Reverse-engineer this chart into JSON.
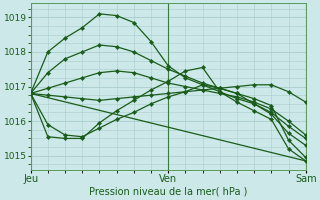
{
  "title": "",
  "xlabel": "Pression niveau de la mer( hPa )",
  "ylabel": "",
  "background_color": "#cce8e8",
  "grid_color": "#aacccc",
  "line_color": "#1a5c1a",
  "ylim": [
    1014.6,
    1019.4
  ],
  "yticks": [
    1015,
    1016,
    1017,
    1018,
    1019
  ],
  "xtick_labels": [
    "Jeu",
    "Ven",
    "Sam"
  ],
  "xtick_positions": [
    0,
    48,
    96
  ],
  "vline_positions": [
    0,
    48,
    96
  ],
  "lines": [
    {
      "x": [
        0,
        6,
        12,
        18,
        24,
        30,
        36,
        42,
        48,
        54,
        60,
        66,
        72,
        78,
        84,
        90,
        96
      ],
      "y": [
        1016.8,
        1018.0,
        1018.4,
        1018.7,
        1019.1,
        1019.05,
        1018.85,
        1018.3,
        1017.6,
        1017.25,
        1017.05,
        1016.85,
        1016.65,
        1016.5,
        1016.25,
        1015.85,
        1015.5
      ]
    },
    {
      "x": [
        0,
        6,
        12,
        18,
        24,
        30,
        36,
        42,
        48,
        54,
        60,
        66,
        72,
        78,
        84,
        90,
        96
      ],
      "y": [
        1016.8,
        1017.4,
        1017.8,
        1018.0,
        1018.2,
        1018.15,
        1018.0,
        1017.75,
        1017.5,
        1017.3,
        1017.1,
        1016.95,
        1016.8,
        1016.5,
        1016.2,
        1015.65,
        1015.3
      ]
    },
    {
      "x": [
        0,
        6,
        12,
        18,
        24,
        30,
        36,
        42,
        48,
        54,
        60,
        66,
        72,
        78,
        84,
        90,
        96
      ],
      "y": [
        1016.8,
        1016.95,
        1017.1,
        1017.25,
        1017.4,
        1017.45,
        1017.4,
        1017.25,
        1017.1,
        1017.0,
        1016.9,
        1016.8,
        1016.7,
        1016.55,
        1016.35,
        1016.0,
        1015.6
      ]
    },
    {
      "x": [
        0,
        6,
        12,
        18,
        24,
        30,
        36,
        42,
        48,
        54,
        60,
        66,
        72,
        78,
        84,
        90,
        96
      ],
      "y": [
        1016.8,
        1016.75,
        1016.7,
        1016.65,
        1016.6,
        1016.65,
        1016.7,
        1016.75,
        1016.8,
        1016.85,
        1016.9,
        1016.95,
        1017.0,
        1017.05,
        1017.05,
        1016.85,
        1016.55
      ]
    },
    {
      "x": [
        0,
        6,
        12,
        18,
        24,
        30,
        36,
        42,
        48,
        54,
        60,
        66,
        72,
        78,
        84,
        90,
        96
      ],
      "y": [
        1016.8,
        1015.9,
        1015.6,
        1015.55,
        1015.8,
        1016.05,
        1016.25,
        1016.5,
        1016.7,
        1016.85,
        1017.05,
        1016.95,
        1016.8,
        1016.65,
        1016.45,
        1015.45,
        1014.95
      ]
    },
    {
      "x": [
        0,
        6,
        12,
        18,
        24,
        30,
        36,
        42,
        48,
        54,
        60,
        66,
        72,
        78,
        84,
        90,
        96
      ],
      "y": [
        1016.8,
        1015.55,
        1015.5,
        1015.5,
        1015.95,
        1016.3,
        1016.6,
        1016.9,
        1017.15,
        1017.45,
        1017.55,
        1016.85,
        1016.55,
        1016.3,
        1016.05,
        1015.2,
        1014.85
      ]
    },
    {
      "x": [
        0,
        96
      ],
      "y": [
        1016.8,
        1014.85
      ]
    }
  ]
}
